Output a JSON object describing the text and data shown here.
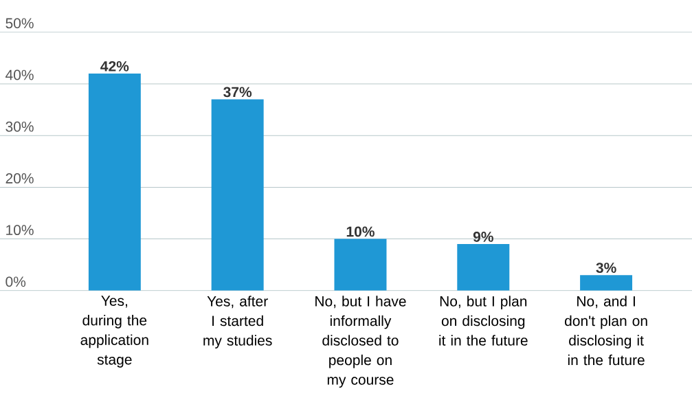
{
  "chart_data": {
    "type": "bar",
    "categories": [
      "Yes, during the application stage",
      "Yes, after I started my studies",
      "No, but I have informally disclosed to people on my course",
      "No, but I plan on disclosing it in the future",
      "No, and I don't plan on disclosing it in the future"
    ],
    "values": [
      42,
      37,
      10,
      9,
      3
    ],
    "value_labels": [
      "42%",
      "37%",
      "10%",
      "9%",
      "3%"
    ],
    "color": "#1f98d5",
    "ylim": [
      0,
      50
    ],
    "yticks": [
      {
        "value": 0,
        "label": "0%"
      },
      {
        "value": 10,
        "label": "10%"
      },
      {
        "value": 20,
        "label": "20%"
      },
      {
        "value": 30,
        "label": "30%"
      },
      {
        "value": 40,
        "label": "40%"
      },
      {
        "value": 50,
        "label": "50%"
      }
    ],
    "grid": "y"
  }
}
